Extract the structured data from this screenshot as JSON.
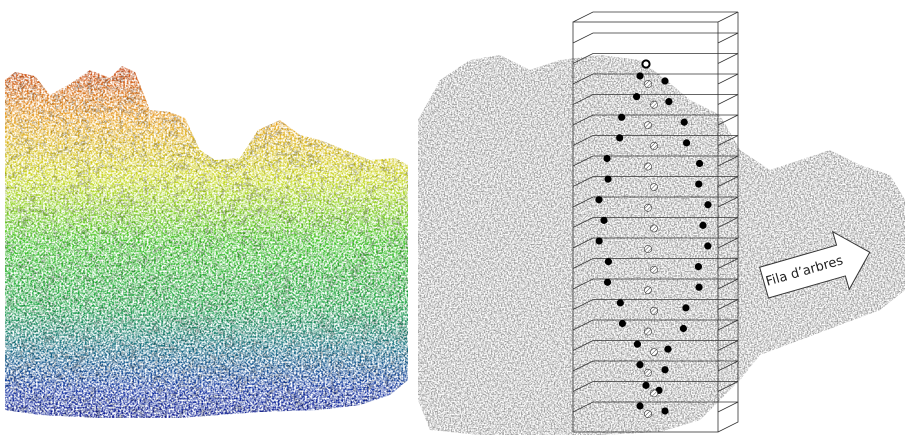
{
  "arrow_label": "Fila d’arbres"
}
